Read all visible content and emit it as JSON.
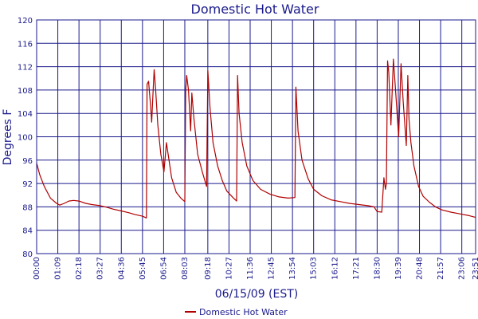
{
  "chart_data": {
    "type": "line",
    "title": "Domestic Hot Water",
    "xlabel": "06/15/09 (EST)",
    "ylabel": "Degrees F",
    "ylim": [
      80,
      120
    ],
    "yticks": [
      80,
      84,
      88,
      92,
      96,
      100,
      104,
      108,
      112,
      116,
      120
    ],
    "xlim_minutes": [
      0,
      1431
    ],
    "xticks": [
      "00:00",
      "01:09",
      "02:18",
      "03:27",
      "04:36",
      "05:45",
      "06:54",
      "08:03",
      "09:18",
      "10:27",
      "11:36",
      "12:45",
      "13:54",
      "15:03",
      "16:12",
      "17:21",
      "18:30",
      "19:39",
      "20:48",
      "21:57",
      "23:06",
      "23:51"
    ],
    "grid": true,
    "legend_position": "bottom-center",
    "colors": {
      "series": "#b00000",
      "grid": "#1a1a8c",
      "frame": "#1a1a8c",
      "text": "#1a1a8c"
    },
    "series": [
      {
        "name": "Domestic Hot Water",
        "points": [
          [
            "00:00",
            95.5
          ],
          [
            "00:10",
            93.5
          ],
          [
            "00:25",
            91.5
          ],
          [
            "00:45",
            89.5
          ],
          [
            "01:05",
            88.6
          ],
          [
            "01:15",
            88.3
          ],
          [
            "01:30",
            88.6
          ],
          [
            "01:45",
            89.0
          ],
          [
            "02:00",
            89.1
          ],
          [
            "02:18",
            89.0
          ],
          [
            "02:40",
            88.6
          ],
          [
            "03:00",
            88.4
          ],
          [
            "03:27",
            88.2
          ],
          [
            "03:50",
            87.9
          ],
          [
            "04:10",
            87.6
          ],
          [
            "04:36",
            87.3
          ],
          [
            "05:00",
            87.0
          ],
          [
            "05:20",
            86.7
          ],
          [
            "05:45",
            86.4
          ],
          [
            "05:58",
            86.1
          ],
          [
            "06:00",
            109.0
          ],
          [
            "06:05",
            109.5
          ],
          [
            "06:12",
            105.0
          ],
          [
            "06:15",
            102.5
          ],
          [
            "06:19",
            107.0
          ],
          [
            "06:23",
            111.5
          ],
          [
            "06:28",
            108.0
          ],
          [
            "06:35",
            102.0
          ],
          [
            "06:45",
            97.0
          ],
          [
            "06:55",
            94.0
          ],
          [
            "07:03",
            99.0
          ],
          [
            "07:10",
            96.5
          ],
          [
            "07:20",
            93.0
          ],
          [
            "07:35",
            90.5
          ],
          [
            "07:50",
            89.5
          ],
          [
            "08:03",
            88.9
          ],
          [
            "08:06",
            108.0
          ],
          [
            "08:09",
            110.5
          ],
          [
            "08:15",
            108.0
          ],
          [
            "08:22",
            101.0
          ],
          [
            "08:26",
            107.5
          ],
          [
            "08:33",
            103.0
          ],
          [
            "08:45",
            97.0
          ],
          [
            "09:00",
            94.0
          ],
          [
            "09:14",
            91.5
          ],
          [
            "09:18",
            111.3
          ],
          [
            "09:25",
            105.0
          ],
          [
            "09:35",
            99.0
          ],
          [
            "09:50",
            95.0
          ],
          [
            "10:05",
            92.5
          ],
          [
            "10:20",
            90.7
          ],
          [
            "10:40",
            89.6
          ],
          [
            "10:52",
            89.0
          ],
          [
            "10:55",
            110.5
          ],
          [
            "11:00",
            104.0
          ],
          [
            "11:10",
            99.0
          ],
          [
            "11:25",
            95.0
          ],
          [
            "11:45",
            92.5
          ],
          [
            "12:10",
            91.0
          ],
          [
            "12:40",
            90.2
          ],
          [
            "13:10",
            89.7
          ],
          [
            "13:40",
            89.5
          ],
          [
            "14:02",
            89.6
          ],
          [
            "14:05",
            108.5
          ],
          [
            "14:12",
            101.0
          ],
          [
            "14:25",
            96.0
          ],
          [
            "14:45",
            92.8
          ],
          [
            "15:03",
            91.0
          ],
          [
            "15:30",
            89.9
          ],
          [
            "16:00",
            89.2
          ],
          [
            "16:30",
            88.9
          ],
          [
            "17:00",
            88.6
          ],
          [
            "17:30",
            88.4
          ],
          [
            "18:00",
            88.2
          ],
          [
            "18:20",
            88.0
          ],
          [
            "18:30",
            87.2
          ],
          [
            "18:45",
            87.1
          ],
          [
            "18:52",
            93.0
          ],
          [
            "18:57",
            91.0
          ],
          [
            "19:00",
            92.0
          ],
          [
            "19:04",
            113.0
          ],
          [
            "19:08",
            111.0
          ],
          [
            "19:15",
            102.0
          ],
          [
            "19:23",
            113.3
          ],
          [
            "19:30",
            108.0
          ],
          [
            "19:40",
            100.0
          ],
          [
            "19:48",
            112.5
          ],
          [
            "19:55",
            106.0
          ],
          [
            "20:05",
            98.5
          ],
          [
            "20:10",
            110.5
          ],
          [
            "20:14",
            103.0
          ],
          [
            "20:20",
            99.0
          ],
          [
            "20:30",
            95.0
          ],
          [
            "20:45",
            91.5
          ],
          [
            "21:00",
            89.8
          ],
          [
            "21:20",
            88.8
          ],
          [
            "21:40",
            88.0
          ],
          [
            "22:00",
            87.5
          ],
          [
            "22:30",
            87.1
          ],
          [
            "23:00",
            86.8
          ],
          [
            "23:30",
            86.5
          ],
          [
            "23:51",
            86.2
          ]
        ]
      }
    ]
  }
}
